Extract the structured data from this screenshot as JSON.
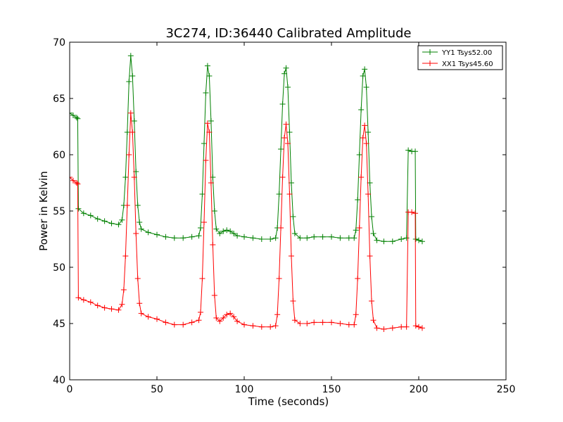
{
  "chart_data": {
    "type": "line",
    "title": "3C274, ID:36440 Calibrated Amplitude",
    "xlabel": "Time (seconds)",
    "ylabel": "Power in Kelvin",
    "xlim": [
      0,
      250
    ],
    "ylim": [
      40,
      70
    ],
    "x_ticks": [
      0,
      50,
      100,
      150,
      200,
      250
    ],
    "y_ticks": [
      40,
      45,
      50,
      55,
      60,
      65,
      70
    ],
    "grid": false,
    "legend_position": "top-right",
    "series": [
      {
        "name": "YY1 Tsys52.00",
        "color": "#008000",
        "marker": "+",
        "points": [
          [
            0,
            63.7
          ],
          [
            2,
            63.5
          ],
          [
            4,
            63.3
          ],
          [
            4.6,
            63.2
          ],
          [
            5,
            55.2
          ],
          [
            8,
            54.8
          ],
          [
            12,
            54.6
          ],
          [
            16,
            54.3
          ],
          [
            20,
            54.1
          ],
          [
            24,
            53.9
          ],
          [
            28,
            53.8
          ],
          [
            30,
            54.2
          ],
          [
            31,
            55.5
          ],
          [
            32,
            58
          ],
          [
            33,
            62
          ],
          [
            34,
            66.5
          ],
          [
            35,
            68.8
          ],
          [
            36,
            67
          ],
          [
            37,
            63
          ],
          [
            38,
            58.5
          ],
          [
            39,
            55.5
          ],
          [
            40,
            54
          ],
          [
            41,
            53.4
          ],
          [
            45,
            53.1
          ],
          [
            50,
            52.9
          ],
          [
            55,
            52.7
          ],
          [
            60,
            52.6
          ],
          [
            65,
            52.6
          ],
          [
            70,
            52.7
          ],
          [
            74,
            52.8
          ],
          [
            75,
            53.5
          ],
          [
            76,
            56.5
          ],
          [
            77,
            61
          ],
          [
            78,
            65.5
          ],
          [
            79,
            67.9
          ],
          [
            80,
            67
          ],
          [
            81,
            63
          ],
          [
            82,
            58
          ],
          [
            83,
            55
          ],
          [
            84,
            53.4
          ],
          [
            86,
            53
          ],
          [
            88,
            53.2
          ],
          [
            90,
            53.3
          ],
          [
            92,
            53.2
          ],
          [
            94,
            53
          ],
          [
            96,
            52.8
          ],
          [
            100,
            52.7
          ],
          [
            105,
            52.6
          ],
          [
            110,
            52.5
          ],
          [
            115,
            52.5
          ],
          [
            118,
            52.6
          ],
          [
            119,
            53.5
          ],
          [
            120,
            56.5
          ],
          [
            121,
            60.5
          ],
          [
            122,
            64.5
          ],
          [
            123,
            67.2
          ],
          [
            124,
            67.7
          ],
          [
            125,
            66
          ],
          [
            126,
            62
          ],
          [
            127,
            57.5
          ],
          [
            128,
            54.5
          ],
          [
            129,
            53
          ],
          [
            132,
            52.6
          ],
          [
            136,
            52.6
          ],
          [
            140,
            52.7
          ],
          [
            145,
            52.7
          ],
          [
            150,
            52.7
          ],
          [
            155,
            52.6
          ],
          [
            160,
            52.6
          ],
          [
            163,
            52.6
          ],
          [
            164,
            53.3
          ],
          [
            165,
            56
          ],
          [
            166,
            60
          ],
          [
            167,
            64
          ],
          [
            168,
            67
          ],
          [
            169,
            67.6
          ],
          [
            170,
            66
          ],
          [
            171,
            62
          ],
          [
            172,
            57.5
          ],
          [
            173,
            54.5
          ],
          [
            174,
            53
          ],
          [
            176,
            52.4
          ],
          [
            180,
            52.3
          ],
          [
            185,
            52.3
          ],
          [
            190,
            52.5
          ],
          [
            193,
            52.6
          ],
          [
            194,
            60.4
          ],
          [
            196,
            60.3
          ],
          [
            198,
            60.3
          ],
          [
            198.3,
            52.5
          ],
          [
            200,
            52.4
          ],
          [
            202,
            52.3
          ]
        ]
      },
      {
        "name": "XX1 Tsys45.60",
        "color": "#ff0000",
        "marker": "+",
        "points": [
          [
            0,
            58
          ],
          [
            2,
            57.7
          ],
          [
            4,
            57.5
          ],
          [
            4.6,
            57.4
          ],
          [
            5,
            47.3
          ],
          [
            8,
            47.1
          ],
          [
            12,
            46.9
          ],
          [
            16,
            46.6
          ],
          [
            20,
            46.4
          ],
          [
            24,
            46.3
          ],
          [
            28,
            46.2
          ],
          [
            30,
            46.7
          ],
          [
            31,
            48
          ],
          [
            32,
            51
          ],
          [
            33,
            55.5
          ],
          [
            34,
            60
          ],
          [
            35,
            63.7
          ],
          [
            36,
            62
          ],
          [
            37,
            58
          ],
          [
            38,
            53
          ],
          [
            39,
            49
          ],
          [
            40,
            46.8
          ],
          [
            41,
            45.9
          ],
          [
            45,
            45.6
          ],
          [
            50,
            45.4
          ],
          [
            55,
            45.1
          ],
          [
            60,
            44.9
          ],
          [
            65,
            44.9
          ],
          [
            70,
            45.1
          ],
          [
            74,
            45.3
          ],
          [
            75,
            46
          ],
          [
            76,
            49
          ],
          [
            77,
            54
          ],
          [
            78,
            59.5
          ],
          [
            79,
            62.8
          ],
          [
            80,
            62
          ],
          [
            81,
            57.5
          ],
          [
            82,
            52
          ],
          [
            83,
            47.5
          ],
          [
            84,
            45.5
          ],
          [
            86,
            45.2
          ],
          [
            88,
            45.5
          ],
          [
            90,
            45.8
          ],
          [
            92,
            45.9
          ],
          [
            94,
            45.6
          ],
          [
            96,
            45.2
          ],
          [
            100,
            44.9
          ],
          [
            105,
            44.8
          ],
          [
            110,
            44.7
          ],
          [
            115,
            44.7
          ],
          [
            118,
            44.8
          ],
          [
            119,
            45.8
          ],
          [
            120,
            49
          ],
          [
            121,
            53.5
          ],
          [
            122,
            58
          ],
          [
            123,
            61.5
          ],
          [
            124,
            62.7
          ],
          [
            125,
            61
          ],
          [
            126,
            56.5
          ],
          [
            127,
            51
          ],
          [
            128,
            47
          ],
          [
            129,
            45.3
          ],
          [
            132,
            45
          ],
          [
            136,
            45
          ],
          [
            140,
            45.1
          ],
          [
            145,
            45.1
          ],
          [
            150,
            45.1
          ],
          [
            155,
            45
          ],
          [
            160,
            44.9
          ],
          [
            163,
            44.9
          ],
          [
            164,
            45.8
          ],
          [
            165,
            49
          ],
          [
            166,
            53.5
          ],
          [
            167,
            58
          ],
          [
            168,
            61.5
          ],
          [
            169,
            62.6
          ],
          [
            170,
            61
          ],
          [
            171,
            56.5
          ],
          [
            172,
            51
          ],
          [
            173,
            47
          ],
          [
            174,
            45.3
          ],
          [
            176,
            44.6
          ],
          [
            180,
            44.5
          ],
          [
            185,
            44.6
          ],
          [
            190,
            44.7
          ],
          [
            193,
            44.7
          ],
          [
            194,
            54.9
          ],
          [
            196,
            54.9
          ],
          [
            198,
            54.8
          ],
          [
            198.3,
            44.8
          ],
          [
            200,
            44.7
          ],
          [
            202,
            44.6
          ]
        ]
      }
    ]
  }
}
